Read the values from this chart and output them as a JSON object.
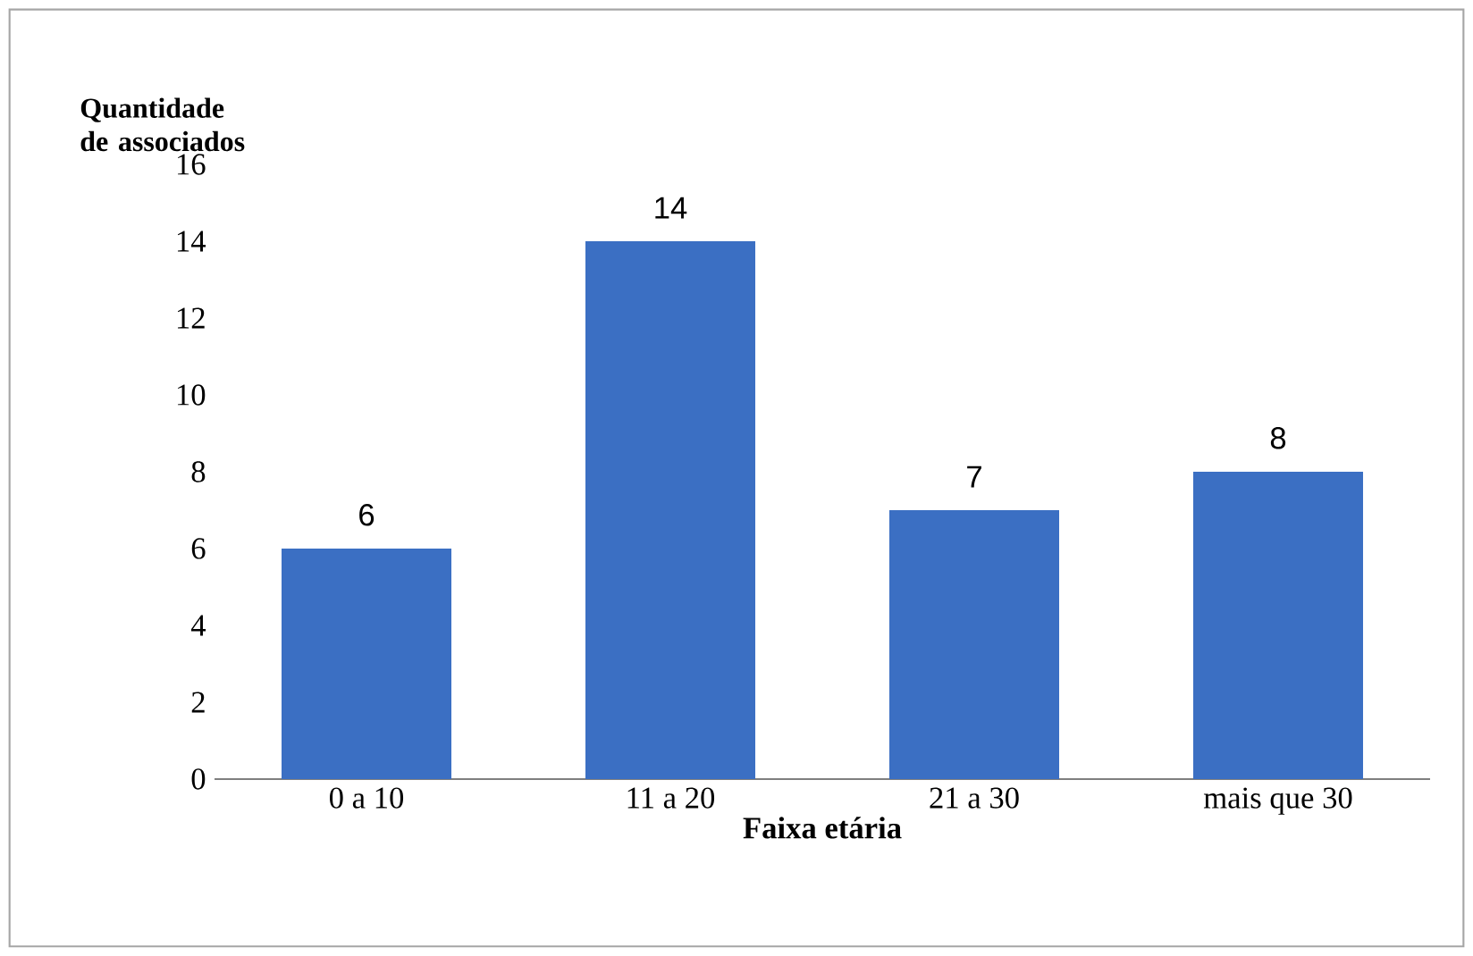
{
  "chart_data": {
    "type": "bar",
    "xlabel": "Faixa etária",
    "ylabel": "Quantidade de associados",
    "categories": [
      "0 a 10",
      "11 a 20",
      "21 a 30",
      "mais que 30"
    ],
    "values": [
      6,
      14,
      7,
      8
    ],
    "color": "#3b6fc3",
    "ylim": [
      0,
      16
    ],
    "yticks": [
      0,
      2,
      4,
      6,
      8,
      10,
      12,
      14,
      16
    ],
    "data_labels": true
  }
}
